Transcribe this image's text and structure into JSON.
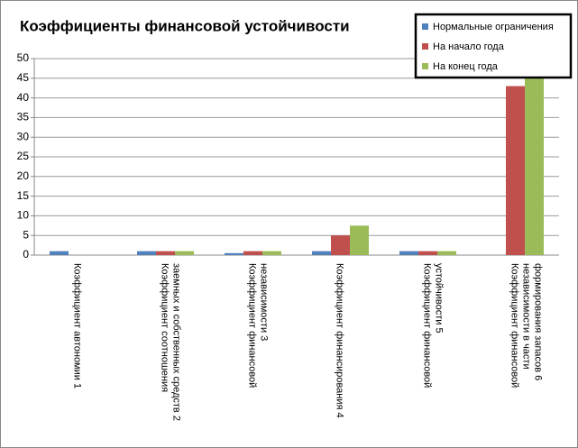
{
  "chart_data": {
    "type": "bar",
    "title": "Коэффициенты финансовой устойчивости",
    "categories": [
      "Коэффициент автономии 1",
      "Коэффициент соотношения заемных и собственных средств 2",
      "Коэффициент финансовой независимости 3",
      "Коэффициент финансирования 4",
      "Коэффициент финансовой устойчивости 5",
      "Коэффициент финансовой независимости в части формирования запасов 6"
    ],
    "series": [
      {
        "name": "Нормальные ограничения",
        "color": "#4f81bd",
        "values": [
          1,
          1,
          0.5,
          1,
          1,
          0
        ]
      },
      {
        "name": "На начало года",
        "color": "#c0504d",
        "values": [
          0,
          1,
          1,
          5,
          1,
          43
        ]
      },
      {
        "name": "На конец года",
        "color": "#9bbb59",
        "values": [
          0,
          1,
          1,
          7.5,
          1,
          45
        ]
      }
    ],
    "ylim": [
      0,
      50
    ],
    "yticks": [
      0,
      5,
      10,
      15,
      20,
      25,
      30,
      35,
      40,
      45,
      50
    ],
    "grid": true,
    "legend": "top-right"
  }
}
